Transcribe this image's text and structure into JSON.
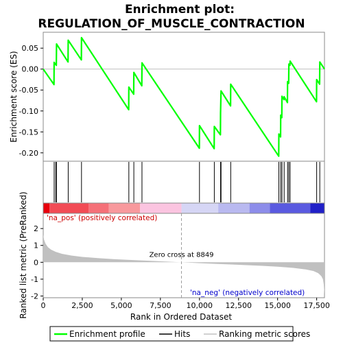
{
  "chart_data": {
    "type": "line",
    "title_line1": "Enrichment plot:",
    "title_line2": "REGULATION_OF_MUSCLE_CONTRACTION",
    "xlabel": "Rank in Ordered Dataset",
    "es_ylabel": "Enrichment score (ES)",
    "metric_ylabel": "Ranked list metric (PreRanked)",
    "xlim": [
      0,
      18000
    ],
    "x_ticks": [
      0,
      2500,
      5000,
      7500,
      10000,
      12500,
      15000,
      17500
    ],
    "x_tick_labels": [
      "0",
      "2,500",
      "5,000",
      "7,500",
      "10,000",
      "12,500",
      "15,000",
      "17,500"
    ],
    "es_ylim": [
      -0.22,
      0.088
    ],
    "es_ticks": [
      0.05,
      0.0,
      -0.05,
      -0.1,
      -0.15,
      -0.2
    ],
    "es_tick_labels": [
      "0.05",
      "0.00",
      "-0.05",
      "-0.10",
      "-0.15",
      "-0.20"
    ],
    "metric_ylim": [
      -2.1,
      2.9
    ],
    "metric_ticks": [
      2,
      1,
      0,
      -1,
      -2
    ],
    "metric_tick_labels": [
      "2",
      "1",
      "0",
      "-1",
      "-2"
    ],
    "hits": [
      700,
      800,
      850,
      1600,
      2450,
      5480,
      5800,
      6320,
      10000,
      10950,
      11350,
      11380,
      12000,
      15080,
      15200,
      15280,
      15420,
      15640,
      15720,
      15800,
      17500,
      17700
    ],
    "es_series": [
      {
        "x": 0,
        "y": 0.0
      },
      {
        "x": 690,
        "y": -0.037
      },
      {
        "x": 700,
        "y": 0.016
      },
      {
        "x": 790,
        "y": 0.011
      },
      {
        "x": 800,
        "y": 0.011
      },
      {
        "x": 840,
        "y": 0.009
      },
      {
        "x": 850,
        "y": 0.06
      },
      {
        "x": 1590,
        "y": 0.017
      },
      {
        "x": 1600,
        "y": 0.069
      },
      {
        "x": 2440,
        "y": 0.022
      },
      {
        "x": 2450,
        "y": 0.075
      },
      {
        "x": 5470,
        "y": -0.097
      },
      {
        "x": 5480,
        "y": -0.043
      },
      {
        "x": 5790,
        "y": -0.06
      },
      {
        "x": 5800,
        "y": -0.008
      },
      {
        "x": 6310,
        "y": -0.04
      },
      {
        "x": 6320,
        "y": 0.015
      },
      {
        "x": 9990,
        "y": -0.189
      },
      {
        "x": 10000,
        "y": -0.135
      },
      {
        "x": 10940,
        "y": -0.19
      },
      {
        "x": 10950,
        "y": -0.137
      },
      {
        "x": 11340,
        "y": -0.157
      },
      {
        "x": 11350,
        "y": -0.105
      },
      {
        "x": 11380,
        "y": -0.052
      },
      {
        "x": 11990,
        "y": -0.088
      },
      {
        "x": 12000,
        "y": -0.036
      },
      {
        "x": 15070,
        "y": -0.208
      },
      {
        "x": 15080,
        "y": -0.155
      },
      {
        "x": 15190,
        "y": -0.162
      },
      {
        "x": 15200,
        "y": -0.11
      },
      {
        "x": 15270,
        "y": -0.116
      },
      {
        "x": 15280,
        "y": -0.065
      },
      {
        "x": 15410,
        "y": -0.073
      },
      {
        "x": 15420,
        "y": -0.066
      },
      {
        "x": 15630,
        "y": -0.08
      },
      {
        "x": 15640,
        "y": -0.03
      },
      {
        "x": 15710,
        "y": -0.034
      },
      {
        "x": 15720,
        "y": 0.012
      },
      {
        "x": 15790,
        "y": 0.009
      },
      {
        "x": 15800,
        "y": 0.019
      },
      {
        "x": 17490,
        "y": -0.078
      },
      {
        "x": 17500,
        "y": -0.025
      },
      {
        "x": 17690,
        "y": -0.036
      },
      {
        "x": 17700,
        "y": 0.017
      },
      {
        "x": 18000,
        "y": 0.0
      }
    ],
    "metric_curve": [
      {
        "x": 0,
        "y": 1.65
      },
      {
        "x": 50,
        "y": 1.35
      },
      {
        "x": 150,
        "y": 1.1
      },
      {
        "x": 300,
        "y": 0.9
      },
      {
        "x": 500,
        "y": 0.75
      },
      {
        "x": 800,
        "y": 0.62
      },
      {
        "x": 1200,
        "y": 0.5
      },
      {
        "x": 1800,
        "y": 0.4
      },
      {
        "x": 2500,
        "y": 0.32
      },
      {
        "x": 3500,
        "y": 0.25
      },
      {
        "x": 4500,
        "y": 0.19
      },
      {
        "x": 5500,
        "y": 0.14
      },
      {
        "x": 6500,
        "y": 0.1
      },
      {
        "x": 7500,
        "y": 0.06
      },
      {
        "x": 8849,
        "y": 0.0
      },
      {
        "x": 10000,
        "y": -0.05
      },
      {
        "x": 11000,
        "y": -0.09
      },
      {
        "x": 12000,
        "y": -0.13
      },
      {
        "x": 13000,
        "y": -0.17
      },
      {
        "x": 14000,
        "y": -0.21
      },
      {
        "x": 15000,
        "y": -0.26
      },
      {
        "x": 16000,
        "y": -0.33
      },
      {
        "x": 16800,
        "y": -0.42
      },
      {
        "x": 17300,
        "y": -0.52
      },
      {
        "x": 17600,
        "y": -0.65
      },
      {
        "x": 17800,
        "y": -0.82
      },
      {
        "x": 17900,
        "y": -1.0
      },
      {
        "x": 17950,
        "y": -1.3
      },
      {
        "x": 18000,
        "y": -1.9
      }
    ],
    "zero_cross": 8849,
    "zero_cross_label": "Zero cross at 8849",
    "na_pos_label": "'na_pos' (positively correlated)",
    "na_neg_label": "'na_neg' (negatively correlated)",
    "heatmap_segments": [
      {
        "x0": 0,
        "x1": 400,
        "color": "#e8000c"
      },
      {
        "x0": 400,
        "x1": 2900,
        "color": "#f24b55"
      },
      {
        "x0": 2900,
        "x1": 4200,
        "color": "#f57078"
      },
      {
        "x0": 4200,
        "x1": 6200,
        "color": "#f8999d"
      },
      {
        "x0": 6200,
        "x1": 8849,
        "color": "#fbc4e0"
      },
      {
        "x0": 8849,
        "x1": 11200,
        "color": "#d6d6f5"
      },
      {
        "x0": 11200,
        "x1": 13200,
        "color": "#b9b9f0"
      },
      {
        "x0": 13200,
        "x1": 14500,
        "color": "#8d8dea"
      },
      {
        "x0": 14500,
        "x1": 17100,
        "color": "#5a5ae0"
      },
      {
        "x0": 17100,
        "x1": 18000,
        "color": "#2020c8"
      }
    ],
    "colors": {
      "es_line": "#00ff00",
      "hit_line": "#000000",
      "metric_fill": "#c0c0c0",
      "zero_line": "#999999",
      "na_pos_text": "#cc0000",
      "na_neg_text": "#0000cc"
    },
    "legend": [
      {
        "label": "Enrichment profile",
        "kind": "line-green"
      },
      {
        "label": "Hits",
        "kind": "line-black"
      },
      {
        "label": "Ranking metric scores",
        "kind": "line-gray"
      }
    ]
  }
}
